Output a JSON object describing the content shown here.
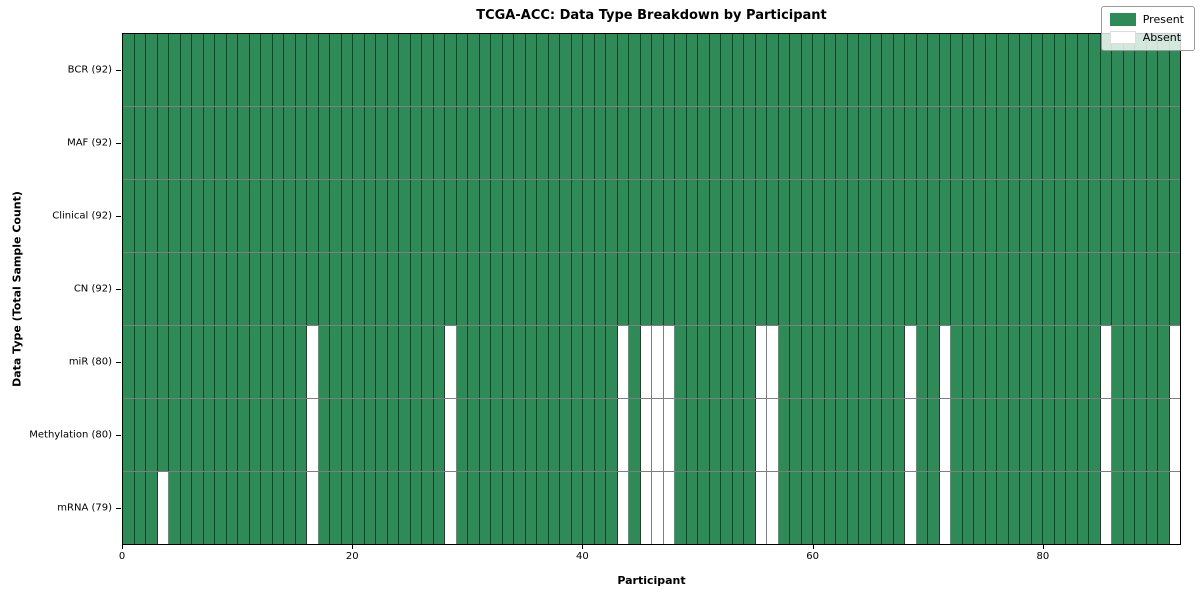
{
  "title": "TCGA-ACC: Data Type Breakdown by Participant",
  "colors": {
    "present": "#2e8b57",
    "absent": "#ffffff",
    "gridline": "rgba(0,0,0,0.5)",
    "plot_border": "#000000"
  },
  "legend": {
    "present_label": "Present",
    "absent_label": "Absent"
  },
  "chart_data": {
    "type": "heatmap",
    "title": "TCGA-ACC: Data Type Breakdown by Participant",
    "xlabel": "Participant",
    "ylabel": "Data Type (Total Sample Count)",
    "participants": 92,
    "x_range": [
      0,
      92
    ],
    "x_ticks": [
      0,
      20,
      40,
      60,
      80
    ],
    "legend": [
      "Present",
      "Absent"
    ],
    "legend_position": "upper right",
    "grid": true,
    "rows": [
      {
        "label": "BCR (92)",
        "total_samples": 92,
        "absent_participants": []
      },
      {
        "label": "MAF (92)",
        "total_samples": 92,
        "absent_participants": []
      },
      {
        "label": "Clinical (92)",
        "total_samples": 92,
        "absent_participants": []
      },
      {
        "label": "CN (92)",
        "total_samples": 92,
        "absent_participants": []
      },
      {
        "label": "miR (80)",
        "total_samples": 80,
        "absent_participants": [
          16,
          28,
          43,
          45,
          46,
          47,
          55,
          56,
          68,
          71,
          85,
          91
        ]
      },
      {
        "label": "Methylation (80)",
        "total_samples": 80,
        "absent_participants": [
          16,
          28,
          43,
          45,
          46,
          47,
          55,
          56,
          68,
          71,
          85,
          91
        ]
      },
      {
        "label": "mRNA (79)",
        "total_samples": 79,
        "absent_participants": [
          3,
          16,
          28,
          43,
          45,
          46,
          47,
          55,
          56,
          68,
          71,
          85,
          91
        ]
      }
    ]
  }
}
